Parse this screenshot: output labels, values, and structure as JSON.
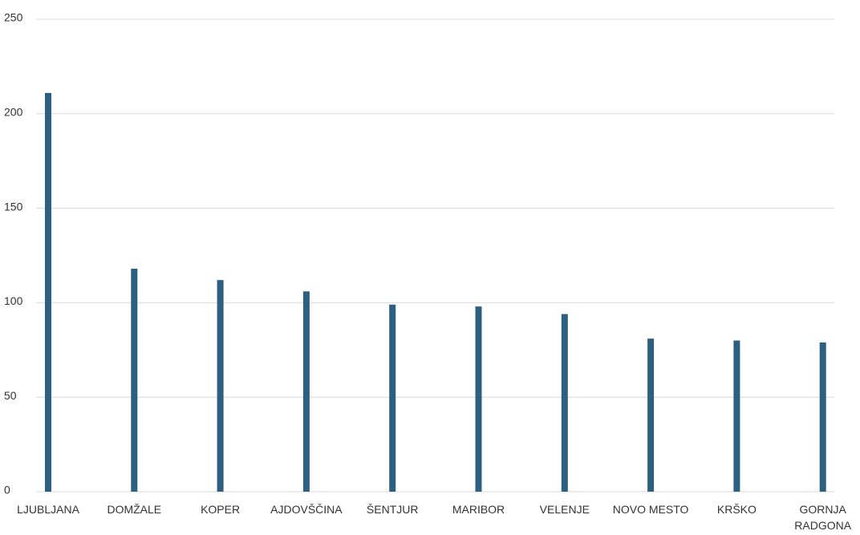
{
  "chart_data": {
    "type": "bar",
    "categories": [
      "LJUBLJANA",
      "DOMŽALE",
      "KOPER",
      "AJDOVŠČINA",
      "ŠENTJUR",
      "MARIBOR",
      "VELENJE",
      "NOVO MESTO",
      "KRŠKO",
      "GORNJA RADGONA"
    ],
    "values": [
      211,
      118,
      112,
      106,
      99,
      98,
      94,
      81,
      80,
      79
    ],
    "color": "#2d5f80",
    "ylim": [
      0,
      250
    ],
    "yticks": [
      0,
      50,
      100,
      150,
      200,
      250
    ],
    "grid": true
  }
}
